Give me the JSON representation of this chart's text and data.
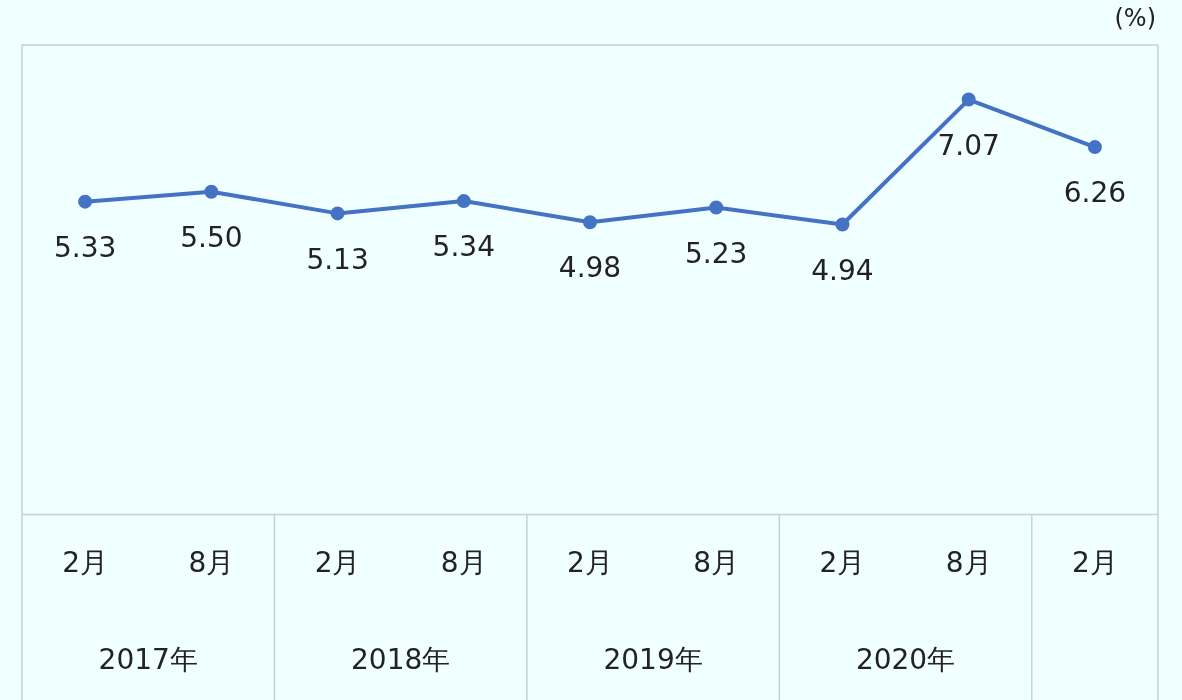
{
  "chart_data": {
    "type": "line",
    "ylabel": "(%)",
    "categories": [
      "2月",
      "8月",
      "2月",
      "8月",
      "2月",
      "8月",
      "2月",
      "8月",
      "2月"
    ],
    "series": [
      {
        "color": "#4472c4",
        "values": [
          5.33,
          5.5,
          5.13,
          5.34,
          4.98,
          5.23,
          4.94,
          7.07,
          6.26
        ],
        "value_labels": [
          "5.33",
          "5.50",
          "5.13",
          "5.34",
          "4.98",
          "5.23",
          "4.94",
          "7.07",
          "6.26"
        ]
      }
    ],
    "ylim": [
      0,
      8
    ],
    "marker": "circle",
    "grid": false,
    "legend": false,
    "tick_labels": "x",
    "annotations": [
      "2017年",
      "2018年",
      "2019年",
      "2020年"
    ]
  }
}
